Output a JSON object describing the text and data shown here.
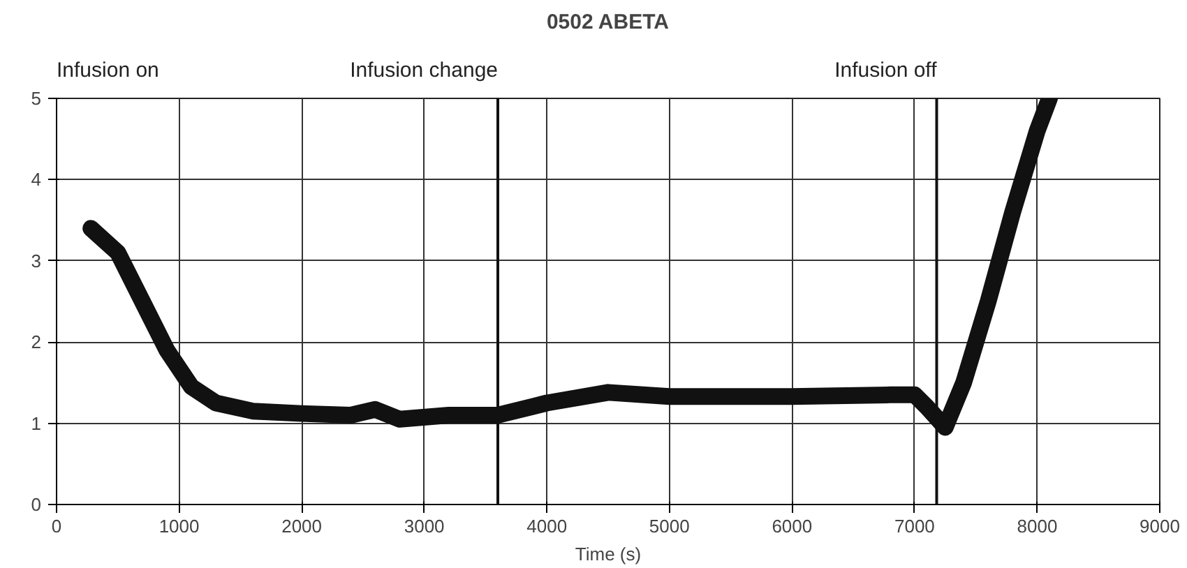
{
  "chart_data": {
    "type": "line",
    "title": "0502 ABETA",
    "xlabel": "Time (s)",
    "x": [
      280,
      500,
      700,
      900,
      1100,
      1300,
      1600,
      2000,
      2400,
      2600,
      2800,
      3200,
      3600,
      4000,
      4500,
      5000,
      6000,
      6800,
      7000,
      7100,
      7250,
      7400,
      7600,
      7800,
      8000,
      8100
    ],
    "series": [
      {
        "color": "#111111",
        "values": [
          3.4,
          3.1,
          2.5,
          1.9,
          1.45,
          1.25,
          1.15,
          1.12,
          1.1,
          1.17,
          1.05,
          1.1,
          1.1,
          1.25,
          1.38,
          1.33,
          1.33,
          1.35,
          1.35,
          1.2,
          0.95,
          1.5,
          2.5,
          3.6,
          4.6,
          5.0
        ]
      }
    ],
    "xlim": [
      0,
      9000
    ],
    "xticks": [
      0,
      1000,
      2000,
      3000,
      4000,
      5000,
      6000,
      7000,
      8000,
      9000
    ],
    "ylim": [
      0,
      5
    ],
    "yticks": [
      0,
      1,
      2,
      3,
      4,
      5
    ],
    "grid": true,
    "line_style": "solid",
    "ref_lines": [
      {
        "axis": "x",
        "value": 3600,
        "label": "Infusion change"
      },
      {
        "axis": "x",
        "value": 7180,
        "label": "Infusion off"
      }
    ],
    "annotations": [
      "Infusion on"
    ]
  }
}
